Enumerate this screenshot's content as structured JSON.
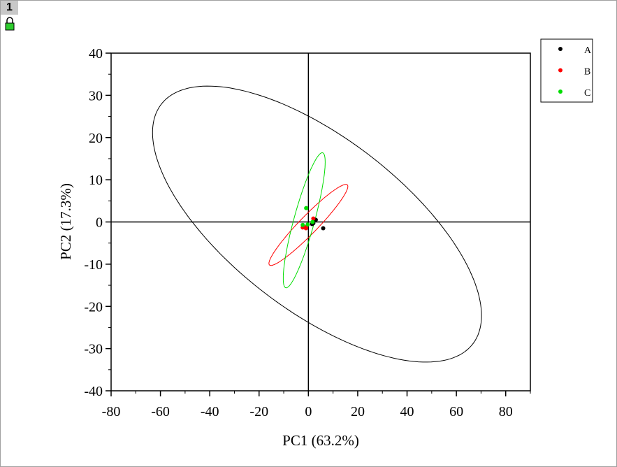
{
  "window_tab": "1",
  "chart_data": {
    "type": "scatter",
    "xlabel": "PC1 (63.2%)",
    "ylabel": "PC2 (17.3%)",
    "xlim": [
      -80,
      90
    ],
    "ylim": [
      -40,
      40
    ],
    "xticks": [
      -80,
      -60,
      -40,
      -20,
      0,
      20,
      40,
      60,
      80
    ],
    "yticks": [
      -40,
      -30,
      -20,
      -10,
      0,
      10,
      20,
      30,
      40
    ],
    "x_minor_step": 10,
    "y_minor_step": 5,
    "zero_lines": true,
    "legend": "outside-right",
    "series": [
      {
        "name": "A",
        "color": "#000000",
        "x": [
          2,
          6,
          3,
          1.5
        ],
        "values": [
          -0.3,
          -1.5,
          0.5,
          -0.5
        ],
        "ellipse": {
          "cx": 3.5,
          "cy": -0.5,
          "rx": 66.7,
          "ry": 32.7,
          "rho": -0.663
        }
      },
      {
        "name": "B",
        "color": "#ff0000",
        "x": [
          -2.3,
          -0.9,
          2,
          -1
        ],
        "values": [
          -1.3,
          -1.2,
          0.8,
          -1.5
        ],
        "ellipse": {
          "cx": 0,
          "cy": -0.7,
          "rx": 16,
          "ry": 9.6,
          "rho": 0.95
        }
      },
      {
        "name": "C",
        "color": "#00dd00",
        "x": [
          -0.9,
          -2.3,
          1.7,
          -0.3
        ],
        "values": [
          3.3,
          -0.7,
          0,
          -0.6
        ],
        "ellipse": {
          "cx": -1.7,
          "cy": 0.4,
          "rx": 8.5,
          "ry": 16,
          "rho": 0.86
        }
      }
    ]
  }
}
